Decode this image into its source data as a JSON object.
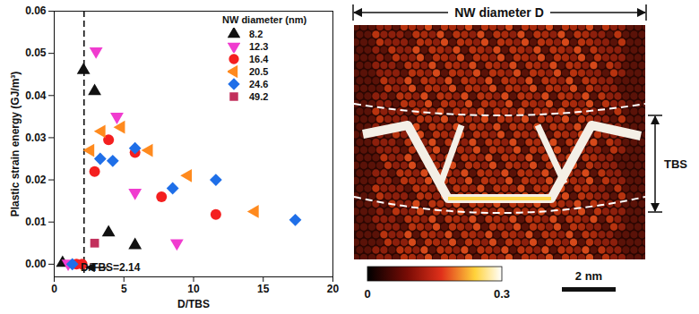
{
  "chart_data": {
    "type": "scatter",
    "x_label": "D/TBS",
    "y_label": "Plastic strain energy (GJ/m³)",
    "xlim": [
      0,
      20
    ],
    "xticks": [
      0,
      5,
      10,
      15,
      20
    ],
    "ylim": [
      -0.003,
      0.06
    ],
    "yticks": [
      {
        "value": 0,
        "label": "0.00"
      },
      {
        "value": 0.01,
        "label": "0.01"
      },
      {
        "value": 0.02,
        "label": "0.02"
      },
      {
        "value": 0.03,
        "label": "0.03"
      },
      {
        "value": 0.04,
        "label": "0.04"
      },
      {
        "value": 0.05,
        "label": "0.05"
      },
      {
        "value": 0.06,
        "label": "0.06"
      }
    ],
    "grid": false,
    "legend": "upper right",
    "legend_title": "NW diameter (nm)",
    "annotations": [
      {
        "text": "D/TBS=2.14",
        "x": 2.14
      }
    ],
    "series": [
      {
        "name": "8.2",
        "color": "#111111",
        "marker": "triangle-up",
        "x": [
          0.6,
          2.1,
          2.9,
          3.9,
          5.8
        ],
        "values": [
          0.0003,
          0.046,
          0.041,
          0.0075,
          0.0045
        ]
      },
      {
        "name": "12.3",
        "color": "#f03ccf",
        "marker": "triangle-down",
        "x": [
          1.0,
          3.0,
          4.5,
          5.8,
          8.8
        ],
        "values": [
          0.0002,
          0.0505,
          0.035,
          0.017,
          0.005
        ]
      },
      {
        "name": "16.4",
        "color": "#f41f1f",
        "marker": "circle",
        "x": [
          1.6,
          2.0,
          2.9,
          3.9,
          5.8,
          7.7,
          11.6
        ],
        "values": [
          0.0,
          0.0,
          0.022,
          0.0295,
          0.0265,
          0.016,
          0.0118
        ]
      },
      {
        "name": "20.5",
        "color": "#ff8a1e",
        "marker": "triangle-left",
        "x": [
          2.6,
          3.4,
          4.8,
          6.8,
          9.6,
          14.4
        ],
        "values": [
          0.027,
          0.0315,
          0.0325,
          0.027,
          0.021,
          0.0125
        ]
      },
      {
        "name": "24.6",
        "color": "#1f6fe8",
        "marker": "diamond",
        "x": [
          1.3,
          3.3,
          4.2,
          5.8,
          8.5,
          11.6,
          17.3
        ],
        "values": [
          0.0,
          0.025,
          0.0245,
          0.0275,
          0.018,
          0.02,
          0.0105
        ]
      },
      {
        "name": "49.2",
        "color": "#c2305c",
        "marker": "square",
        "x": [
          2.9
        ],
        "values": [
          0.005
        ]
      }
    ]
  },
  "image_panel": {
    "header": "NW diameter D",
    "bracket_label": "TBS",
    "colorbar": {
      "range": [
        0,
        0.3
      ],
      "ticks": [
        0,
        0.3
      ]
    },
    "scale_bar": "2 nm"
  }
}
